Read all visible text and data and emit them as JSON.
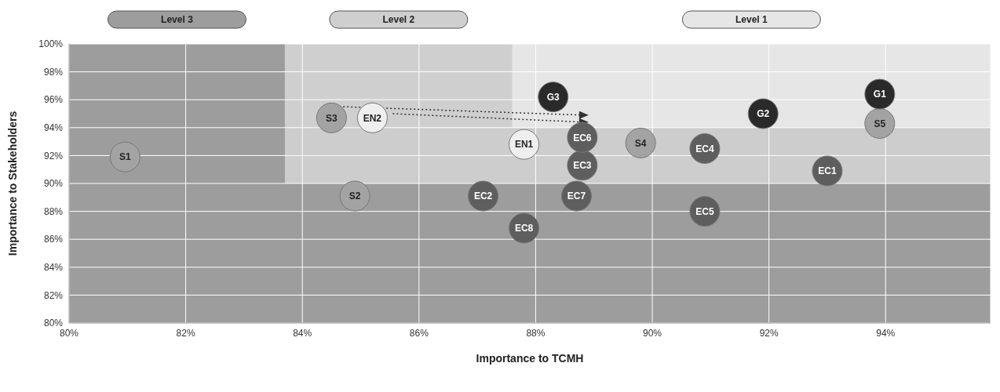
{
  "chart_data": {
    "type": "scatter",
    "xlabel": "Importance to TCMH",
    "ylabel": "Importance to Stakeholders",
    "xlim": [
      80,
      95.8
    ],
    "ylim": [
      80,
      100
    ],
    "xticks": [
      {
        "value": 80,
        "label": "80%"
      },
      {
        "value": 82,
        "label": "82%"
      },
      {
        "value": 84,
        "label": "84%"
      },
      {
        "value": 86,
        "label": "86%"
      },
      {
        "value": 88,
        "label": "88%"
      },
      {
        "value": 90,
        "label": "90%"
      },
      {
        "value": 92,
        "label": "92%"
      },
      {
        "value": 94,
        "label": "94%"
      }
    ],
    "yticks": [
      {
        "value": 80,
        "label": "80%"
      },
      {
        "value": 82,
        "label": "82%"
      },
      {
        "value": 84,
        "label": "84%"
      },
      {
        "value": 86,
        "label": "86%"
      },
      {
        "value": 88,
        "label": "88%"
      },
      {
        "value": 90,
        "label": "90%"
      },
      {
        "value": 92,
        "label": "92%"
      },
      {
        "value": 94,
        "label": "94%"
      },
      {
        "value": 96,
        "label": "96%"
      },
      {
        "value": 98,
        "label": "98%"
      },
      {
        "value": 100,
        "label": "100%"
      }
    ],
    "grid": true,
    "legend": false,
    "marker": "circle",
    "bands": [
      {
        "axis": "x",
        "from": 87.6,
        "to": 95.8,
        "label": "Level 1",
        "color": "#e6e6e6"
      },
      {
        "axis": "x",
        "from": 83.7,
        "to": 87.6,
        "label": "Level 2",
        "color": "#cfcfcf"
      },
      {
        "axis": "y",
        "from": 90,
        "to": 94,
        "color": "#cdcdcd"
      },
      {
        "axis": "y",
        "from": 80,
        "to": 90,
        "color": "#9d9d9d"
      },
      {
        "axis": "x",
        "from": 80,
        "to": 83.7,
        "label": "Level 3",
        "color": "#9d9d9d"
      }
    ],
    "series": [
      {
        "type": "line",
        "line_style": "dotted",
        "marker": "triangle",
        "color": "#333333",
        "x": [
          84.7,
          88.8
        ],
        "values": [
          95.5,
          94.9
        ]
      },
      {
        "type": "line",
        "line_style": "dotted",
        "marker": "triangle",
        "color": "#333333",
        "x": [
          85.55,
          88.8
        ],
        "values": [
          95.0,
          94.4
        ]
      },
      {
        "name": "S1",
        "color": "#a3a3a3",
        "x": [
          80.96
        ],
        "values": [
          91.9
        ]
      },
      {
        "name": "S2",
        "color": "#a3a3a3",
        "x": [
          84.9
        ],
        "values": [
          89.1
        ]
      },
      {
        "name": "S3",
        "color": "#a3a3a3",
        "x": [
          84.5
        ],
        "values": [
          94.7
        ]
      },
      {
        "name": "S4",
        "color": "#a3a3a3",
        "x": [
          89.8
        ],
        "values": [
          92.9
        ]
      },
      {
        "name": "S5",
        "color": "#a3a3a3",
        "x": [
          93.9
        ],
        "values": [
          94.3
        ]
      },
      {
        "name": "EN1",
        "color": "#efefef",
        "x": [
          87.8
        ],
        "values": [
          92.8
        ]
      },
      {
        "name": "EN2",
        "color": "#efefef",
        "x": [
          85.2
        ],
        "values": [
          94.7
        ]
      },
      {
        "name": "EC1",
        "color": "#5e5e5e",
        "x": [
          93.0
        ],
        "values": [
          90.9
        ]
      },
      {
        "name": "EC2",
        "color": "#5e5e5e",
        "x": [
          87.1
        ],
        "values": [
          89.1
        ]
      },
      {
        "name": "EC3",
        "color": "#5e5e5e",
        "x": [
          88.8
        ],
        "values": [
          91.3
        ]
      },
      {
        "name": "EC4",
        "color": "#5e5e5e",
        "x": [
          90.9
        ],
        "values": [
          92.5
        ]
      },
      {
        "name": "EC5",
        "color": "#5e5e5e",
        "x": [
          90.9
        ],
        "values": [
          88.0
        ]
      },
      {
        "name": "EC6",
        "color": "#5e5e5e",
        "x": [
          88.8
        ],
        "values": [
          93.3
        ]
      },
      {
        "name": "EC7",
        "color": "#5e5e5e",
        "x": [
          88.7
        ],
        "values": [
          89.1
        ]
      },
      {
        "name": "EC8",
        "color": "#5e5e5e",
        "x": [
          87.8
        ],
        "values": [
          86.8
        ]
      },
      {
        "name": "G1",
        "color": "#2a2a2a",
        "x": [
          93.9
        ],
        "values": [
          96.4
        ]
      },
      {
        "name": "G2",
        "color": "#2a2a2a",
        "x": [
          91.9
        ],
        "values": [
          95.0
        ]
      },
      {
        "name": "G3",
        "color": "#2a2a2a",
        "x": [
          88.3
        ],
        "values": [
          96.2
        ]
      }
    ]
  }
}
